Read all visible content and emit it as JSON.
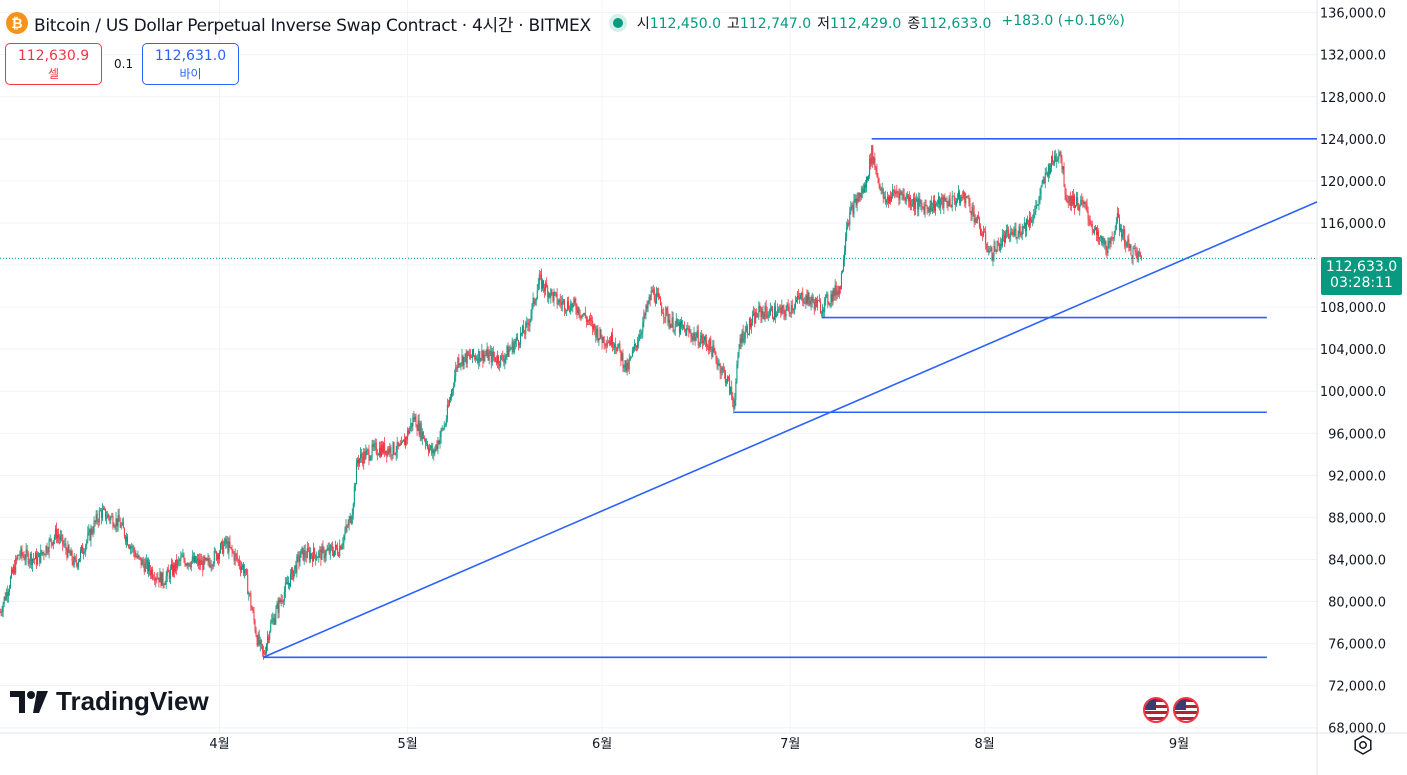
{
  "header": {
    "icon_symbol": "₿",
    "title": "Bitcoin / US Dollar Perpetual Inverse Swap Contract · 4시간 · BITMEX",
    "open_label": "시",
    "open_value": "112,450.0",
    "high_label": "고",
    "high_value": "112,747.0",
    "low_label": "저",
    "low_value": "112,429.0",
    "close_label": "종",
    "close_value": "112,633.0",
    "change": "+183.0 (+0.16%)"
  },
  "trade": {
    "sell_price": "112,630.9",
    "sell_label": "셀",
    "spread": "0.1",
    "buy_price": "112,631.0",
    "buy_label": "바이"
  },
  "price_badge": {
    "price": "112,633.0",
    "countdown": "03:28:11"
  },
  "logo": {
    "text": "TradingView"
  },
  "colors": {
    "up": "#089981",
    "down": "#f23645",
    "trendline": "#2962ff",
    "grid": "#f0f3fa",
    "axis_text": "#131722"
  },
  "icons": [
    "bitcoin-icon",
    "status-dot-icon",
    "tradingview-logo-icon",
    "us-flag-icon",
    "settings-icon"
  ],
  "chart_data": {
    "type": "candlestick",
    "timeframe": "4시간",
    "y_axis": {
      "ticks": [
        68000,
        72000,
        76000,
        80000,
        84000,
        88000,
        92000,
        96000,
        100000,
        104000,
        108000,
        112000,
        116000,
        120000,
        124000,
        128000,
        132000,
        136000
      ],
      "tick_labels": [
        "68,000.0",
        "72,000.0",
        "76,000.0",
        "80,000.0",
        "84,000.0",
        "88,000.0",
        "92,000.0",
        "96,000.0",
        "100,000.0",
        "104,000.0",
        "108,000.0",
        "",
        "116,000.0",
        "120,000.0",
        "124,000.0",
        "128,000.0",
        "132,000.0",
        "136,000.0"
      ],
      "range": [
        67500,
        137200
      ]
    },
    "x_axis": {
      "range": [
        "2025-02-25",
        "2025-09-23"
      ],
      "ticks": [
        "2025-04-01",
        "2025-05-01",
        "2025-06-01",
        "2025-07-01",
        "2025-08-01",
        "2025-09-01"
      ],
      "tick_labels": [
        "4월",
        "5월",
        "6월",
        "7월",
        "8월",
        "9월"
      ]
    },
    "price_path": [
      [
        "2025-02-25",
        79000
      ],
      [
        "2025-02-28",
        84500
      ],
      [
        "2025-03-03",
        84000
      ],
      [
        "2025-03-06",
        86500
      ],
      [
        "2025-03-09",
        83500
      ],
      [
        "2025-03-13",
        88500
      ],
      [
        "2025-03-16",
        87500
      ],
      [
        "2025-03-19",
        84000
      ],
      [
        "2025-03-23",
        82000
      ],
      [
        "2025-03-26",
        84000
      ],
      [
        "2025-03-30",
        83500
      ],
      [
        "2025-04-02",
        85500
      ],
      [
        "2025-04-05",
        83000
      ],
      [
        "2025-04-07",
        76500
      ],
      [
        "2025-04-08",
        74800
      ],
      [
        "2025-04-09",
        77500
      ],
      [
        "2025-04-11",
        80500
      ],
      [
        "2025-04-14",
        84500
      ],
      [
        "2025-04-17",
        84500
      ],
      [
        "2025-04-20",
        85000
      ],
      [
        "2025-04-22",
        88000
      ],
      [
        "2025-04-23",
        93500
      ],
      [
        "2025-04-26",
        94500
      ],
      [
        "2025-04-30",
        94500
      ],
      [
        "2025-05-02",
        97500
      ],
      [
        "2025-05-05",
        94000
      ],
      [
        "2025-05-07",
        97000
      ],
      [
        "2025-05-09",
        103000
      ],
      [
        "2025-05-13",
        103500
      ],
      [
        "2025-05-16",
        103000
      ],
      [
        "2025-05-20",
        106000
      ],
      [
        "2025-05-22",
        110500
      ],
      [
        "2025-05-25",
        108500
      ],
      [
        "2025-05-28",
        108000
      ],
      [
        "2025-06-01",
        105000
      ],
      [
        "2025-06-03",
        104800
      ],
      [
        "2025-06-05",
        102000
      ],
      [
        "2025-06-07",
        105500
      ],
      [
        "2025-06-09",
        109500
      ],
      [
        "2025-06-12",
        106500
      ],
      [
        "2025-06-15",
        105500
      ],
      [
        "2025-06-18",
        104500
      ],
      [
        "2025-06-21",
        101000
      ],
      [
        "2025-06-22",
        98800
      ],
      [
        "2025-06-23",
        105000
      ],
      [
        "2025-06-26",
        107500
      ],
      [
        "2025-06-30",
        107500
      ],
      [
        "2025-07-03",
        109000
      ],
      [
        "2025-07-06",
        108000
      ],
      [
        "2025-07-09",
        110000
      ],
      [
        "2025-07-10",
        116000
      ],
      [
        "2025-07-11",
        117500
      ],
      [
        "2025-07-13",
        119500
      ],
      [
        "2025-07-14",
        122700
      ],
      [
        "2025-07-16",
        118000
      ],
      [
        "2025-07-18",
        119000
      ],
      [
        "2025-07-22",
        117500
      ],
      [
        "2025-07-26",
        118000
      ],
      [
        "2025-07-29",
        118500
      ],
      [
        "2025-08-01",
        114500
      ],
      [
        "2025-08-02",
        113000
      ],
      [
        "2025-08-04",
        114500
      ],
      [
        "2025-08-07",
        115500
      ],
      [
        "2025-08-09",
        117000
      ],
      [
        "2025-08-11",
        121000
      ],
      [
        "2025-08-13",
        123000
      ],
      [
        "2025-08-14",
        118500
      ],
      [
        "2025-08-17",
        117500
      ],
      [
        "2025-08-19",
        114500
      ],
      [
        "2025-08-21",
        113500
      ],
      [
        "2025-08-22",
        116500
      ],
      [
        "2025-08-24",
        113500
      ],
      [
        "2025-08-26",
        112633
      ]
    ],
    "drawings": {
      "horizontal_lines": [
        {
          "price": 124000,
          "x_start": "2025-07-14",
          "x_end": "2025-09-23"
        },
        {
          "price": 107000,
          "x_start": "2025-07-06",
          "x_end": "2025-09-15"
        },
        {
          "price": 98000,
          "x_start": "2025-06-22",
          "x_end": "2025-09-15"
        },
        {
          "price": 74700,
          "x_start": "2025-04-08",
          "x_end": "2025-09-15"
        }
      ],
      "trendline": {
        "start": [
          "2025-04-08",
          74700
        ],
        "end": [
          "2025-09-23",
          118000
        ]
      }
    },
    "current_price": 112633
  }
}
